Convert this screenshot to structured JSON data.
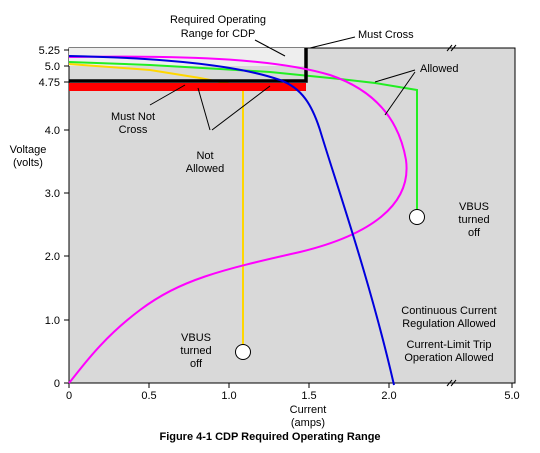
{
  "figure": {
    "caption": "Figure 4-1  CDP Required Operating Range"
  },
  "axes": {
    "ylabel_line1": "Voltage",
    "ylabel_line2": "(volts)",
    "xlabel_line1": "Current",
    "xlabel_line2": "(amps)",
    "y_ticks": [
      "5.25",
      "5.0",
      "4.75",
      "4.0",
      "3.0",
      "2.0",
      "1.0",
      "0"
    ],
    "x_ticks": [
      "0",
      "0.5",
      "1.0",
      "1.5",
      "2.0",
      "5.0"
    ]
  },
  "annotations": {
    "required_line1": "Required Operating",
    "required_line2": "Range for CDP",
    "must_cross": "Must Cross",
    "allowed": "Allowed",
    "must_not_line1": "Must Not",
    "must_not_line2": "Cross",
    "not_allowed_line1": "Not",
    "not_allowed_line2": "Allowed",
    "vbus_right_line1": "VBUS",
    "vbus_right_line2": "turned",
    "vbus_right_line3": "off",
    "vbus_left_line1": "VBUS",
    "vbus_left_line2": "turned",
    "vbus_left_line3": "off",
    "continuous_line1": "Continuous Current",
    "continuous_line2": "Regulation Allowed",
    "trip_line1": "Current-Limit Trip",
    "trip_line2": "Operation Allowed"
  },
  "colors": {
    "plot_bg": "#d9d9d9",
    "magenta": "#ff00ff",
    "blue": "#0000dd",
    "green": "#22ee22",
    "yellow": "#ffd700",
    "red": "#ff0000",
    "black": "#000000"
  }
}
